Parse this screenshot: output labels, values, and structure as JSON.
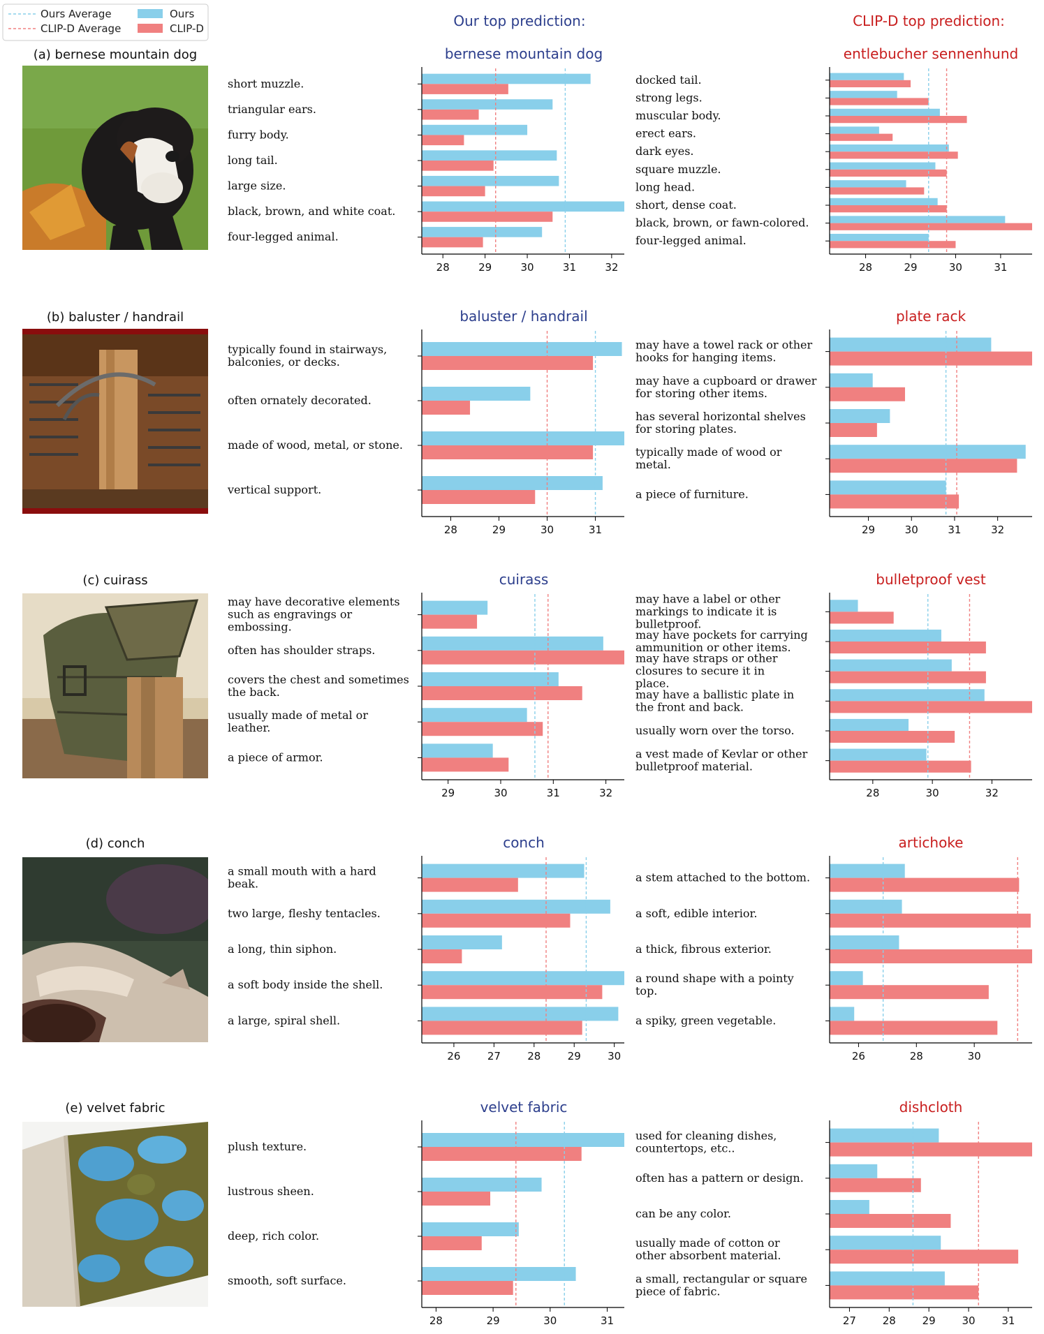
{
  "colors": {
    "ours": "#89cfea",
    "clipd": "#f08080",
    "ours_title": "#2c3e8c",
    "clipd_title": "#c81e1e",
    "ours_avg_line": "#89cfea",
    "clipd_avg_line": "#f08080"
  },
  "legend": {
    "ours_average": "Ours Average",
    "clipd_average": "CLIP-D Average",
    "ours": "Ours",
    "clipd": "CLIP-D"
  },
  "headers": {
    "ours": "Our top prediction:",
    "clipd": "CLIP-D top prediction:"
  },
  "chart_data": [
    {
      "type": "bar",
      "panel": "(a) bernese mountain dog",
      "image": "bernese-mountain-dog-photo",
      "ours_chart": {
        "title": "bernese mountain dog",
        "categories": [
          "short muzzle.",
          "triangular ears.",
          "furry body.",
          "long tail.",
          "large size.",
          "black, brown, and white coat.",
          "four-legged animal."
        ],
        "series": [
          {
            "name": "Ours",
            "values": [
              31.5,
              30.6,
              30.0,
              30.7,
              30.75,
              32.3,
              30.35
            ]
          },
          {
            "name": "CLIP-D",
            "values": [
              29.55,
              28.85,
              28.5,
              29.2,
              29.0,
              30.6,
              28.95
            ]
          }
        ],
        "ours_average": 30.9,
        "clipd_average": 29.25,
        "xlim": [
          27.5,
          32.3
        ],
        "xticks": [
          28,
          29,
          30,
          31,
          32
        ]
      },
      "clipd_chart": {
        "title": "entlebucher sennenhund",
        "categories": [
          "docked tail.",
          "strong legs.",
          "muscular body.",
          "erect ears.",
          "dark eyes.",
          "square muzzle.",
          "long head.",
          "short, dense coat.",
          "black, brown, or fawn-colored.",
          "four-legged animal."
        ],
        "series": [
          {
            "name": "Ours",
            "values": [
              28.85,
              28.7,
              29.65,
              28.3,
              29.85,
              29.55,
              28.9,
              29.6,
              31.1,
              29.4
            ]
          },
          {
            "name": "CLIP-D",
            "values": [
              29.0,
              29.4,
              30.25,
              28.6,
              30.05,
              29.8,
              29.3,
              29.8,
              31.7,
              30.0
            ]
          }
        ],
        "ours_average": 29.4,
        "clipd_average": 29.8,
        "xlim": [
          27.2,
          31.7
        ],
        "xticks": [
          28,
          29,
          30,
          31
        ]
      }
    },
    {
      "type": "bar",
      "panel": "(b) baluster / handrail",
      "image": "baluster-handrail-photo",
      "ours_chart": {
        "title": "baluster / handrail",
        "categories": [
          "typically found in stairways,\nbalconies, or decks.",
          "often ornately decorated.",
          "made of wood, metal, or stone.",
          "vertical support."
        ],
        "series": [
          {
            "name": "Ours",
            "values": [
              31.55,
              29.65,
              31.6,
              31.15
            ]
          },
          {
            "name": "CLIP-D",
            "values": [
              30.95,
              28.4,
              30.95,
              29.75
            ]
          }
        ],
        "ours_average": 31.0,
        "clipd_average": 30.0,
        "xlim": [
          27.4,
          31.6
        ],
        "xticks": [
          28,
          29,
          30,
          31
        ]
      },
      "clipd_chart": {
        "title": "plate rack",
        "categories": [
          "may have a towel rack or other\nhooks for hanging items.",
          "may have a cupboard or drawer\nfor storing other items.",
          "has several horizontal shelves\nfor storing plates.",
          "typically made of wood or\nmetal.",
          "a piece of furniture."
        ],
        "series": [
          {
            "name": "Ours",
            "values": [
              31.85,
              29.1,
              29.5,
              32.65,
              30.8
            ]
          },
          {
            "name": "CLIP-D",
            "values": [
              32.8,
              29.85,
              29.2,
              32.45,
              31.1
            ]
          }
        ],
        "ours_average": 30.8,
        "clipd_average": 31.05,
        "xlim": [
          28.1,
          32.8
        ],
        "xticks": [
          29,
          30,
          31,
          32
        ]
      }
    },
    {
      "type": "bar",
      "panel": "(c) cuirass",
      "image": "cuirass-photo",
      "ours_chart": {
        "title": "cuirass",
        "categories": [
          "may have decorative elements\nsuch as engravings or\nembossing.",
          "often has shoulder straps.",
          "covers the chest and sometimes\nthe back.",
          "usually made of metal or\nleather.",
          "a piece of armor."
        ],
        "series": [
          {
            "name": "Ours",
            "values": [
              29.75,
              31.95,
              31.1,
              30.5,
              29.85
            ]
          },
          {
            "name": "CLIP-D",
            "values": [
              29.55,
              32.35,
              31.55,
              30.8,
              30.15
            ]
          }
        ],
        "ours_average": 30.65,
        "clipd_average": 30.9,
        "xlim": [
          28.5,
          32.35
        ],
        "xticks": [
          29,
          30,
          31,
          32
        ]
      },
      "clipd_chart": {
        "title": "bulletproof vest",
        "categories": [
          "may have a label or other\nmarkings to indicate it is\nbulletproof.",
          "may have pockets for carrying\nammunition or other items.",
          "may have straps or other\nclosures to secure it in\nplace.",
          "may have a ballistic plate in\nthe front and back.",
          "usually worn over the torso.",
          "a vest made of Kevlar or other\nbulletproof material."
        ],
        "series": [
          {
            "name": "Ours",
            "values": [
              27.5,
              30.3,
              30.65,
              31.75,
              29.2,
              29.8
            ]
          },
          {
            "name": "CLIP-D",
            "values": [
              28.7,
              31.8,
              31.8,
              33.35,
              30.75,
              31.3
            ]
          }
        ],
        "ours_average": 29.85,
        "clipd_average": 31.25,
        "xlim": [
          26.55,
          33.35
        ],
        "xticks": [
          28,
          30,
          32
        ]
      }
    },
    {
      "type": "bar",
      "panel": "(d) conch",
      "image": "conch-photo",
      "ours_chart": {
        "title": "conch",
        "categories": [
          "a small mouth with a hard\nbeak.",
          "two large, fleshy tentacles.",
          "a long, thin siphon.",
          "a soft body inside the shell.",
          "a large, spiral shell."
        ],
        "series": [
          {
            "name": "Ours",
            "values": [
              29.25,
              29.9,
              27.2,
              30.25,
              30.1
            ]
          },
          {
            "name": "CLIP-D",
            "values": [
              27.6,
              28.9,
              26.2,
              29.7,
              29.2
            ]
          }
        ],
        "ours_average": 29.3,
        "clipd_average": 28.3,
        "xlim": [
          25.2,
          30.25
        ],
        "xticks": [
          26,
          27,
          28,
          29,
          30
        ]
      },
      "clipd_chart": {
        "title": "artichoke",
        "categories": [
          "a stem attached to the bottom.",
          "a soft, edible interior.",
          "a thick, fibrous exterior.",
          "a round shape with a pointy\ntop.",
          "a spiky, green vegetable."
        ],
        "series": [
          {
            "name": "Ours",
            "values": [
              27.6,
              27.5,
              27.4,
              26.15,
              25.85
            ]
          },
          {
            "name": "CLIP-D",
            "values": [
              31.55,
              31.95,
              32.0,
              30.5,
              30.8
            ]
          }
        ],
        "ours_average": 26.85,
        "clipd_average": 31.5,
        "xlim": [
          25.0,
          32.0
        ],
        "xticks": [
          26,
          28,
          30
        ]
      }
    },
    {
      "type": "bar",
      "panel": "(e) velvet fabric",
      "image": "velvet-fabric-photo",
      "ours_chart": {
        "title": "velvet fabric",
        "categories": [
          "plush texture.",
          "lustrous sheen.",
          "deep, rich color.",
          "smooth, soft surface."
        ],
        "series": [
          {
            "name": "Ours",
            "values": [
              31.3,
              29.85,
              29.45,
              30.45
            ]
          },
          {
            "name": "CLIP-D",
            "values": [
              30.55,
              28.95,
              28.8,
              29.35
            ]
          }
        ],
        "ours_average": 30.25,
        "clipd_average": 29.4,
        "xlim": [
          27.75,
          31.3
        ],
        "xticks": [
          28,
          29,
          30,
          31
        ]
      },
      "clipd_chart": {
        "title": "dishcloth",
        "categories": [
          "used for cleaning dishes,\ncountertops, etc..",
          "often has a pattern or design.",
          "can be any color.",
          "usually made of cotton or\nother absorbent material.",
          "a small, rectangular or square\npiece of fabric."
        ],
        "series": [
          {
            "name": "Ours",
            "values": [
              29.25,
              27.7,
              27.5,
              29.3,
              29.4
            ]
          },
          {
            "name": "CLIP-D",
            "values": [
              31.6,
              28.8,
              29.55,
              31.25,
              30.25
            ]
          }
        ],
        "ours_average": 28.6,
        "clipd_average": 30.25,
        "xlim": [
          26.5,
          31.6
        ],
        "xticks": [
          27,
          28,
          29,
          30,
          31
        ]
      }
    }
  ]
}
